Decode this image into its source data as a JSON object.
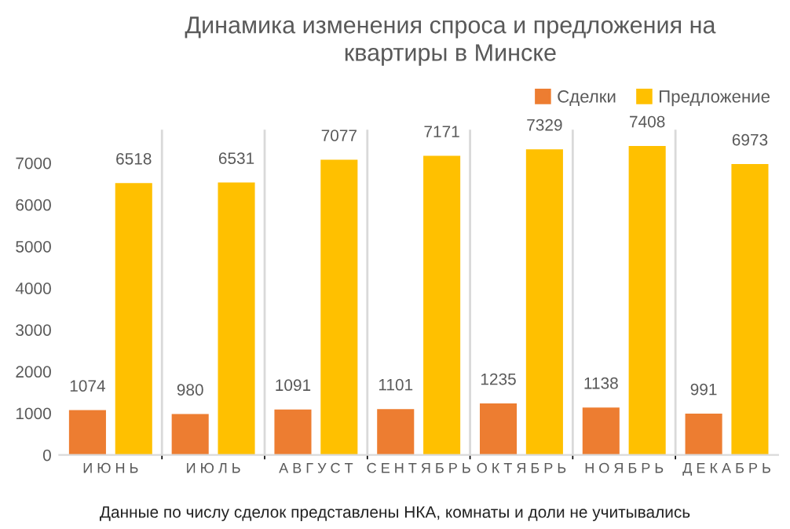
{
  "chart_data": {
    "type": "bar",
    "title": "Динамика изменения спроса и предложения на\nквартиры в Минске",
    "categories": [
      "И Ю Н Ь",
      "И Ю Л Ь",
      "А В Г У С Т",
      "С Е Н Т Я Б Р Ь",
      "О К Т Я Б Р Ь",
      "Н О Я Б Р Ь",
      "Д Е К А Б Р Ь"
    ],
    "series": [
      {
        "name": "Сделки",
        "color": "#ed7d31",
        "values": [
          1074,
          980,
          1091,
          1101,
          1235,
          1138,
          991
        ]
      },
      {
        "name": "Предложение",
        "color": "#ffc000",
        "values": [
          6518,
          6531,
          7077,
          7171,
          7329,
          7408,
          6973
        ]
      }
    ],
    "ylim": [
      0,
      7800
    ],
    "yticks": [
      0,
      1000,
      2000,
      3000,
      4000,
      5000,
      6000,
      7000
    ],
    "grid": "x",
    "legend": "top right",
    "data_labels": true,
    "annotations": [
      "Данные по числу сделок представлены НКА, комнаты и доли не учитывались"
    ]
  }
}
